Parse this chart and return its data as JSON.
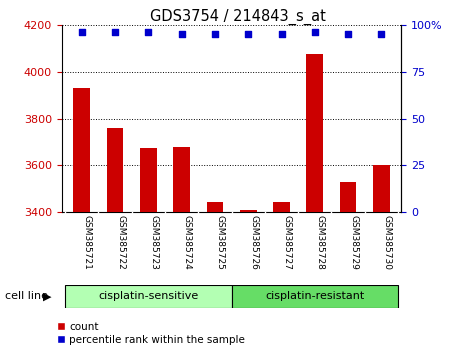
{
  "title": "GDS3754 / 214843_s_at",
  "samples": [
    "GSM385721",
    "GSM385722",
    "GSM385723",
    "GSM385724",
    "GSM385725",
    "GSM385726",
    "GSM385727",
    "GSM385728",
    "GSM385729",
    "GSM385730"
  ],
  "counts": [
    3930,
    3760,
    3675,
    3680,
    3445,
    3410,
    3445,
    4075,
    3530,
    3600
  ],
  "percentile_ranks": [
    96,
    96,
    96,
    95,
    95,
    95,
    95,
    96,
    95,
    95
  ],
  "ylim_left": [
    3400,
    4200
  ],
  "ylim_right": [
    0,
    100
  ],
  "yticks_left": [
    3400,
    3600,
    3800,
    4000,
    4200
  ],
  "yticks_right": [
    0,
    25,
    50,
    75,
    100
  ],
  "groups": [
    {
      "label": "cisplatin-sensitive",
      "indices": [
        0,
        1,
        2,
        3,
        4
      ],
      "color": "#b3ffb3"
    },
    {
      "label": "cisplatin-resistant",
      "indices": [
        5,
        6,
        7,
        8,
        9
      ],
      "color": "#66dd66"
    }
  ],
  "bar_color": "#cc0000",
  "dot_color": "#0000cc",
  "grid_color": "#000000",
  "bar_width": 0.5,
  "cell_line_label": "cell line",
  "legend_count_label": "count",
  "legend_percentile_label": "percentile rank within the sample",
  "left_tick_color": "#cc0000",
  "right_tick_color": "#0000cc",
  "label_bg_color": "#c8c8c8",
  "label_sep_color": "#ffffff"
}
